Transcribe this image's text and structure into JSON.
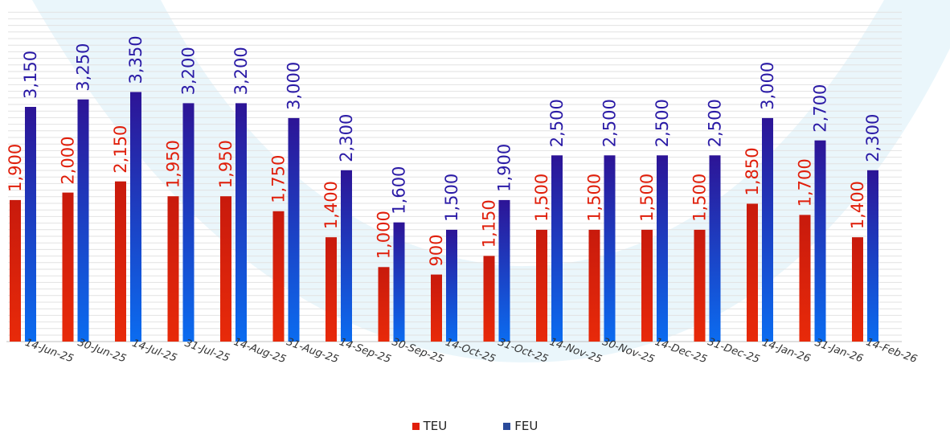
{
  "chart_data": {
    "type": "bar",
    "categories": [
      "14-Jun-25",
      "30-Jun-25",
      "14-Jul-25",
      "31-Jul-25",
      "14-Aug-25",
      "31-Aug-25",
      "14-Sep-25",
      "30-Sep-25",
      "14-Oct-25",
      "31-Oct-25",
      "14-Nov-25",
      "30-Nov-25",
      "14-Dec-25",
      "31-Dec-25",
      "14-Jan-26",
      "31-Jan-26",
      "14-Feb-26"
    ],
    "series": [
      {
        "name": "TEU",
        "values": [
          1900,
          2000,
          2150,
          1950,
          1950,
          1750,
          1400,
          1000,
          900,
          1150,
          1500,
          1500,
          1500,
          1500,
          1850,
          1700,
          1400
        ],
        "value_labels": [
          "1,900",
          "2,000",
          "2,150",
          "1,950",
          "1,950",
          "1,750",
          "1,400",
          "1,000",
          "900",
          "1,150",
          "1,500",
          "1,500",
          "1,500",
          "1,500",
          "1,850",
          "1,700",
          "1,400"
        ]
      },
      {
        "name": "FEU",
        "values": [
          3150,
          3250,
          3350,
          3200,
          3200,
          3000,
          2300,
          1600,
          1500,
          1900,
          2500,
          2500,
          2500,
          2500,
          3000,
          2700,
          2300
        ],
        "value_labels": [
          "3,150",
          "3,250",
          "3,350",
          "3,200",
          "3,200",
          "3,000",
          "2,300",
          "1,600",
          "1,500",
          "1,900",
          "2,500",
          "2,500",
          "2,500",
          "2,500",
          "3,000",
          "2,700",
          "2,300"
        ]
      }
    ],
    "ylim": [
      0,
      4600
    ],
    "grid": true,
    "legend_position": "bottom",
    "colors": {
      "TEU": "#e01e0a",
      "FEU": "#2a1aa6"
    }
  }
}
